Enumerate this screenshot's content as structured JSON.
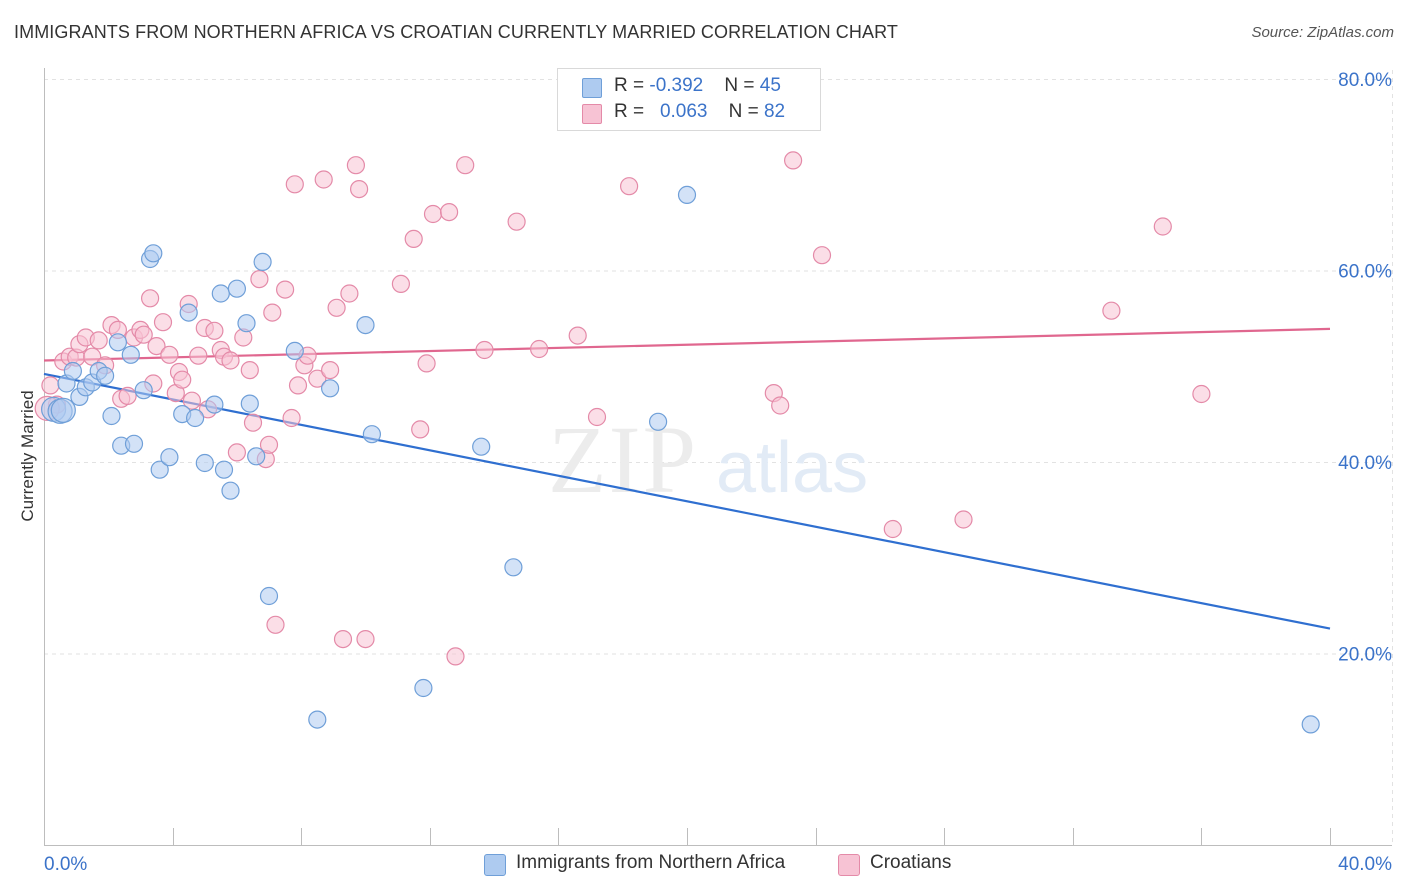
{
  "title": "IMMIGRANTS FROM NORTHERN AFRICA VS CROATIAN CURRENTLY MARRIED CORRELATION CHART",
  "source": "Source: ZipAtlas.com",
  "watermark": {
    "zip": "ZIP",
    "atlas": "atlas"
  },
  "legend_top": {
    "rows": [
      {
        "r_label": "R = ",
        "r_value": "-0.392",
        "n_label": "N = ",
        "n_value": "45"
      },
      {
        "r_label": "R = ",
        "r_value": "0.063",
        "n_label": "N = ",
        "n_value": "82"
      }
    ]
  },
  "colors": {
    "blue_fill": "#aecbf0",
    "blue_stroke": "#6f9fd8",
    "blue_line": "#2f6fd0",
    "pink_fill": "#f7c3d4",
    "pink_stroke": "#e48aa8",
    "pink_line": "#e0678f",
    "grid": "#e2e2e2",
    "tick_text": "#3b73c9"
  },
  "chart_data": {
    "type": "scatter",
    "title": "IMMIGRANTS FROM NORTHERN AFRICA VS CROATIAN CURRENTLY MARRIED CORRELATION CHART",
    "xlabel": "",
    "ylabel": "Currently Married",
    "xlim": [
      0,
      40
    ],
    "ylim": [
      0,
      80
    ],
    "x_ticks": [
      "0.0%",
      "40.0%"
    ],
    "y_ticks": [
      {
        "value": 20,
        "label": "20.0%"
      },
      {
        "value": 40,
        "label": "40.0%"
      },
      {
        "value": 60,
        "label": "60.0%"
      },
      {
        "value": 80,
        "label": "80.0%"
      }
    ],
    "grid": true,
    "legend_placement": "bottom",
    "series": [
      {
        "name": "Immigrants from Northern Africa",
        "color": "#aecbf0",
        "trend": {
          "x": [
            0,
            40
          ],
          "y": [
            49.2,
            22.6
          ]
        },
        "points": [
          [
            0.3,
            45.5
          ],
          [
            0.5,
            45.3
          ],
          [
            0.7,
            48.2
          ],
          [
            0.9,
            49.5
          ],
          [
            1.1,
            46.8
          ],
          [
            1.3,
            47.8
          ],
          [
            1.5,
            48.3
          ],
          [
            1.7,
            49.5
          ],
          [
            1.9,
            49.0
          ],
          [
            2.1,
            44.8
          ],
          [
            2.3,
            52.5
          ],
          [
            2.4,
            41.7
          ],
          [
            2.7,
            51.2
          ],
          [
            2.8,
            41.9
          ],
          [
            3.1,
            47.5
          ],
          [
            3.3,
            61.2
          ],
          [
            3.4,
            61.8
          ],
          [
            3.6,
            39.2
          ],
          [
            3.9,
            40.5
          ],
          [
            4.3,
            45.0
          ],
          [
            4.5,
            55.6
          ],
          [
            4.7,
            44.6
          ],
          [
            5.0,
            39.9
          ],
          [
            5.3,
            46.0
          ],
          [
            5.5,
            57.6
          ],
          [
            5.6,
            39.2
          ],
          [
            5.8,
            37.0
          ],
          [
            6.0,
            58.1
          ],
          [
            6.3,
            54.5
          ],
          [
            6.4,
            46.1
          ],
          [
            6.6,
            40.6
          ],
          [
            6.8,
            60.9
          ],
          [
            7.0,
            26.0
          ],
          [
            7.8,
            51.6
          ],
          [
            8.5,
            13.1
          ],
          [
            8.9,
            47.7
          ],
          [
            10.0,
            54.3
          ],
          [
            10.2,
            42.9
          ],
          [
            11.8,
            16.4
          ],
          [
            13.6,
            41.6
          ],
          [
            14.6,
            29.0
          ],
          [
            19.1,
            44.2
          ],
          [
            20.0,
            67.9
          ],
          [
            39.4,
            12.6
          ],
          [
            0.6,
            45.4
          ]
        ]
      },
      {
        "name": "Croatians",
        "color": "#f7c3d4",
        "trend": {
          "x": [
            0,
            40
          ],
          "y": [
            50.6,
            53.9
          ]
        },
        "points": [
          [
            0.2,
            48.0
          ],
          [
            0.4,
            46.0
          ],
          [
            0.6,
            50.5
          ],
          [
            0.8,
            51.0
          ],
          [
            1.0,
            50.9
          ],
          [
            1.1,
            52.3
          ],
          [
            1.3,
            53.0
          ],
          [
            1.5,
            51.0
          ],
          [
            1.7,
            52.7
          ],
          [
            1.9,
            50.1
          ],
          [
            2.1,
            54.3
          ],
          [
            2.3,
            53.8
          ],
          [
            2.4,
            46.6
          ],
          [
            2.6,
            46.9
          ],
          [
            2.8,
            53.0
          ],
          [
            3.0,
            53.8
          ],
          [
            3.1,
            53.3
          ],
          [
            3.3,
            57.1
          ],
          [
            3.4,
            48.2
          ],
          [
            3.5,
            52.1
          ],
          [
            3.7,
            54.6
          ],
          [
            3.9,
            51.2
          ],
          [
            4.1,
            47.2
          ],
          [
            4.2,
            49.4
          ],
          [
            4.3,
            48.6
          ],
          [
            4.5,
            56.5
          ],
          [
            4.6,
            46.4
          ],
          [
            4.8,
            51.1
          ],
          [
            5.0,
            54.0
          ],
          [
            5.1,
            45.5
          ],
          [
            5.3,
            53.7
          ],
          [
            5.5,
            51.7
          ],
          [
            5.6,
            51.0
          ],
          [
            5.8,
            50.6
          ],
          [
            6.0,
            41.0
          ],
          [
            6.2,
            53.0
          ],
          [
            6.4,
            49.6
          ],
          [
            6.5,
            44.1
          ],
          [
            6.7,
            59.1
          ],
          [
            6.9,
            40.3
          ],
          [
            7.0,
            41.8
          ],
          [
            7.1,
            55.6
          ],
          [
            7.2,
            23.0
          ],
          [
            7.5,
            58.0
          ],
          [
            7.7,
            44.6
          ],
          [
            7.8,
            69.0
          ],
          [
            7.9,
            48.0
          ],
          [
            8.1,
            50.1
          ],
          [
            8.2,
            51.1
          ],
          [
            8.5,
            48.7
          ],
          [
            8.7,
            69.5
          ],
          [
            8.9,
            49.6
          ],
          [
            9.1,
            56.1
          ],
          [
            9.3,
            21.5
          ],
          [
            9.5,
            57.6
          ],
          [
            9.7,
            71.0
          ],
          [
            9.8,
            68.5
          ],
          [
            10.0,
            21.5
          ],
          [
            11.1,
            58.6
          ],
          [
            11.5,
            63.3
          ],
          [
            11.7,
            43.4
          ],
          [
            11.9,
            50.3
          ],
          [
            12.1,
            65.9
          ],
          [
            12.6,
            66.1
          ],
          [
            12.8,
            19.7
          ],
          [
            13.1,
            71.0
          ],
          [
            13.7,
            51.7
          ],
          [
            14.7,
            65.1
          ],
          [
            15.4,
            51.8
          ],
          [
            16.6,
            53.2
          ],
          [
            17.2,
            44.7
          ],
          [
            18.2,
            68.8
          ],
          [
            22.7,
            47.2
          ],
          [
            22.9,
            45.9
          ],
          [
            23.3,
            71.5
          ],
          [
            24.2,
            61.6
          ],
          [
            26.4,
            33.0
          ],
          [
            28.6,
            34.0
          ],
          [
            33.2,
            55.8
          ],
          [
            34.8,
            64.6
          ],
          [
            36.0,
            47.1
          ],
          [
            0.1,
            45.6
          ]
        ]
      }
    ]
  }
}
